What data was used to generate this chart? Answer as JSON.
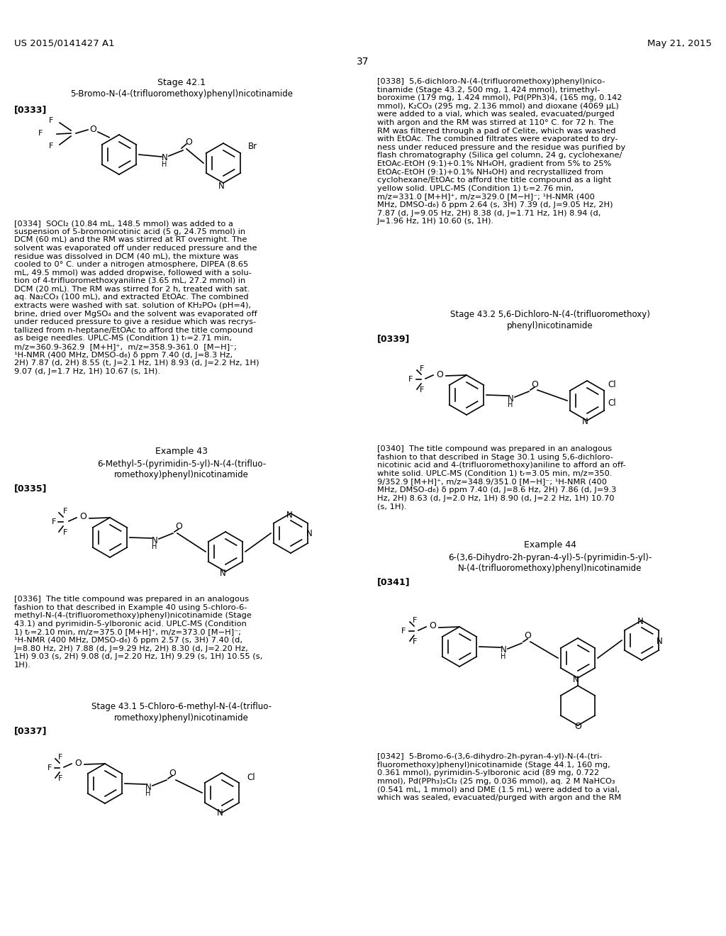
{
  "page_number": "37",
  "patent_number": "US 2015/0141427 A1",
  "patent_date": "May 21, 2015",
  "background_color": "#ffffff",
  "text_color": "#000000",
  "font_size_body": 8.2,
  "font_size_small": 7.5,
  "font_size_heading": 9.0,
  "font_size_page_header": 9.5
}
